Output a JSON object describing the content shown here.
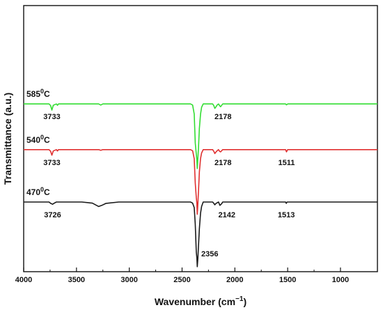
{
  "chart_data": {
    "type": "line",
    "xlabel": "Wavenumber (cm",
    "xlabel_sup": "−1",
    "xlabel_close": ")",
    "ylabel": "Transmittance (a.u.)",
    "xlim": [
      4000,
      650
    ],
    "x_reversed": true,
    "x_ticks": [
      4000,
      3500,
      3000,
      2500,
      2000,
      1500,
      1000
    ],
    "y_ticks_shown": false,
    "grid": false,
    "series": [
      {
        "name": "585",
        "unit": "C",
        "color": "#33dd33",
        "offset": 0.88,
        "points": [
          [
            4000,
            0
          ],
          [
            3900,
            0
          ],
          [
            3760,
            0
          ],
          [
            3745,
            -0.015
          ],
          [
            3733,
            -0.055
          ],
          [
            3720,
            -0.012
          ],
          [
            3690,
            0
          ],
          [
            3680,
            -0.012
          ],
          [
            3670,
            0
          ],
          [
            3290,
            0
          ],
          [
            3270,
            -0.01
          ],
          [
            3250,
            0
          ],
          [
            2420,
            0
          ],
          [
            2400,
            -0.01
          ],
          [
            2385,
            -0.09
          ],
          [
            2375,
            -0.35
          ],
          [
            2365,
            -0.45
          ],
          [
            2360,
            -0.5
          ],
          [
            2356,
            -0.58
          ],
          [
            2350,
            -0.48
          ],
          [
            2345,
            -0.4
          ],
          [
            2336,
            -0.22
          ],
          [
            2325,
            -0.09
          ],
          [
            2315,
            -0.03
          ],
          [
            2300,
            0
          ],
          [
            2210,
            0
          ],
          [
            2200,
            -0.015
          ],
          [
            2190,
            -0.04
          ],
          [
            2178,
            -0.025
          ],
          [
            2168,
            -0.01
          ],
          [
            2155,
            0
          ],
          [
            2145,
            -0.015
          ],
          [
            2135,
            -0.025
          ],
          [
            2115,
            0
          ],
          [
            2050,
            0
          ],
          [
            1520,
            0
          ],
          [
            1511,
            -0.008
          ],
          [
            1500,
            0
          ],
          [
            650,
            0
          ]
        ]
      },
      {
        "name": "540",
        "unit": "C",
        "color": "#e03030",
        "offset": 0.47,
        "points": [
          [
            4000,
            0
          ],
          [
            3900,
            0
          ],
          [
            3760,
            0
          ],
          [
            3745,
            -0.015
          ],
          [
            3733,
            -0.05
          ],
          [
            3720,
            -0.012
          ],
          [
            3690,
            0
          ],
          [
            3680,
            -0.012
          ],
          [
            3670,
            0
          ],
          [
            3290,
            0
          ],
          [
            3270,
            -0.006
          ],
          [
            3250,
            0
          ],
          [
            2420,
            0
          ],
          [
            2400,
            -0.01
          ],
          [
            2385,
            -0.08
          ],
          [
            2375,
            -0.3
          ],
          [
            2365,
            -0.43
          ],
          [
            2360,
            -0.48
          ],
          [
            2356,
            -0.58
          ],
          [
            2350,
            -0.48
          ],
          [
            2345,
            -0.38
          ],
          [
            2336,
            -0.2
          ],
          [
            2325,
            -0.08
          ],
          [
            2315,
            -0.03
          ],
          [
            2300,
            0
          ],
          [
            2210,
            0
          ],
          [
            2200,
            -0.015
          ],
          [
            2190,
            -0.035
          ],
          [
            2178,
            -0.02
          ],
          [
            2168,
            -0.01
          ],
          [
            2155,
            0
          ],
          [
            2145,
            -0.015
          ],
          [
            2135,
            -0.02
          ],
          [
            2115,
            0
          ],
          [
            2050,
            0
          ],
          [
            1520,
            0
          ],
          [
            1511,
            -0.02
          ],
          [
            1500,
            0
          ],
          [
            650,
            0
          ]
        ]
      },
      {
        "name": "470",
        "unit": "C",
        "color": "#1a1a1a",
        "offset": 0.0,
        "points": [
          [
            4000,
            0
          ],
          [
            3900,
            0
          ],
          [
            3760,
            0
          ],
          [
            3745,
            -0.012
          ],
          [
            3726,
            -0.02
          ],
          [
            3710,
            -0.01
          ],
          [
            3690,
            0
          ],
          [
            3450,
            0
          ],
          [
            3350,
            -0.01
          ],
          [
            3290,
            -0.04
          ],
          [
            3260,
            -0.03
          ],
          [
            3220,
            -0.012
          ],
          [
            3100,
            0
          ],
          [
            2420,
            0
          ],
          [
            2400,
            -0.01
          ],
          [
            2385,
            -0.05
          ],
          [
            2375,
            -0.2
          ],
          [
            2365,
            -0.45
          ],
          [
            2360,
            -0.5
          ],
          [
            2356,
            -0.58
          ],
          [
            2350,
            -0.5
          ],
          [
            2345,
            -0.4
          ],
          [
            2336,
            -0.24
          ],
          [
            2325,
            -0.1
          ],
          [
            2315,
            -0.04
          ],
          [
            2300,
            0
          ],
          [
            2210,
            0
          ],
          [
            2200,
            -0.012
          ],
          [
            2190,
            -0.025
          ],
          [
            2178,
            -0.012
          ],
          [
            2155,
            0
          ],
          [
            2142,
            -0.03
          ],
          [
            2125,
            -0.015
          ],
          [
            2115,
            0
          ],
          [
            2050,
            0
          ],
          [
            1520,
            0
          ],
          [
            1513,
            -0.012
          ],
          [
            1505,
            0
          ],
          [
            650,
            0
          ]
        ]
      }
    ],
    "annotations": [
      {
        "series": 0,
        "x": 3733,
        "text": "3733"
      },
      {
        "series": 0,
        "x": 2178,
        "text": "2178"
      },
      {
        "series": 1,
        "x": 3733,
        "text": "3733"
      },
      {
        "series": 1,
        "x": 2178,
        "text": "2178"
      },
      {
        "series": 1,
        "x": 1511,
        "text": "1511"
      },
      {
        "series": 2,
        "x": 3726,
        "text": "3726"
      },
      {
        "series": 2,
        "x": 2142,
        "text": "2142"
      },
      {
        "series": 2,
        "x": 1513,
        "text": "1513"
      },
      {
        "series": 2,
        "x": 2356,
        "text": "2356"
      }
    ]
  }
}
